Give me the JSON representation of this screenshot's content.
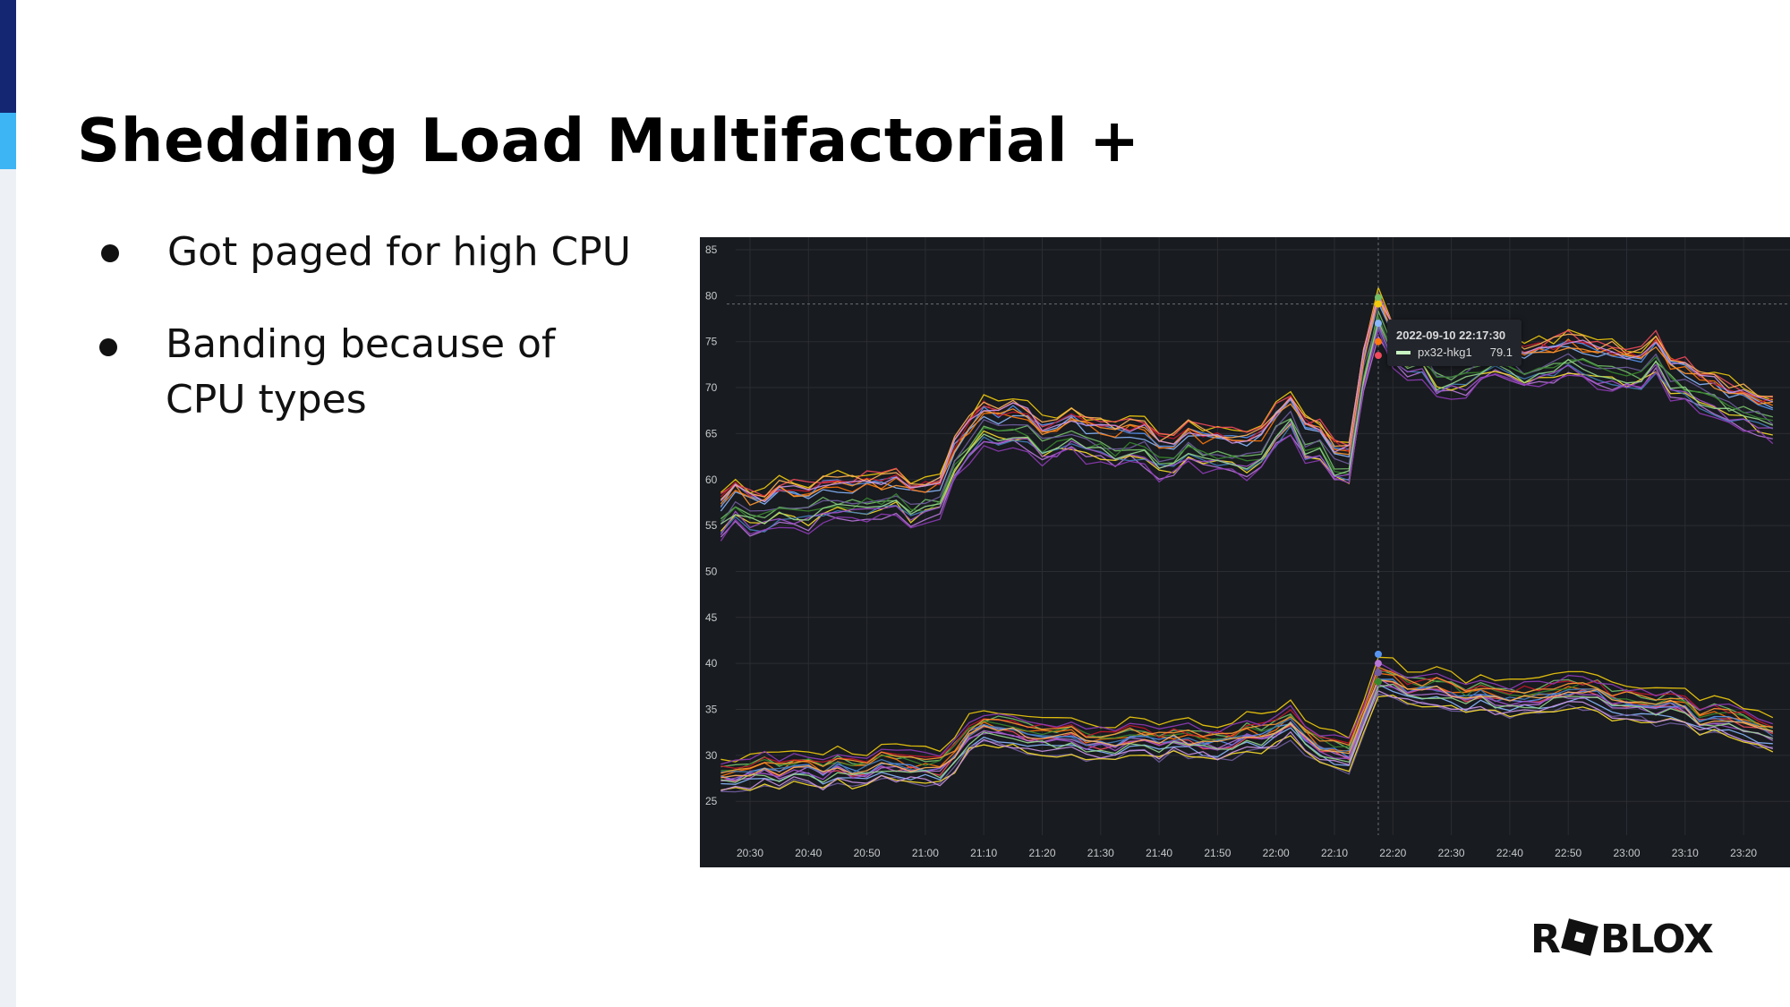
{
  "slide": {
    "title": "Shedding Load Multifactorial +",
    "bullets": [
      "Got paged for high CPU",
      "Banding because of",
      "CPU types"
    ],
    "logo_text": "ROBLOX",
    "accent_colors": {
      "dark_blue": "#142672",
      "light_blue": "#3db5f5",
      "gray": "#edf1f5"
    }
  },
  "chart_data": {
    "type": "line",
    "theme": "dark",
    "background": "#181b1f",
    "grid": true,
    "ylim": [
      22,
      86
    ],
    "y_ticks": [
      "85",
      "80",
      "75",
      "70",
      "65",
      "60",
      "55",
      "50",
      "45",
      "40",
      "35",
      "30",
      "25"
    ],
    "x_ticks": [
      "20:30",
      "20:40",
      "20:50",
      "21:00",
      "21:10",
      "21:20",
      "21:30",
      "21:40",
      "21:50",
      "22:00",
      "22:10",
      "22:20",
      "22:30",
      "22:40",
      "22:50",
      "23:00",
      "23:10",
      "23:20"
    ],
    "bands": [
      {
        "band": "upper",
        "x": [
          "20:25",
          "20:30",
          "20:40",
          "20:50",
          "21:00",
          "21:03",
          "21:05",
          "21:08",
          "21:10",
          "21:20",
          "21:30",
          "21:40",
          "21:50",
          "21:55",
          "22:00",
          "22:02",
          "22:05",
          "22:10",
          "22:13",
          "22:15",
          "22:17",
          "22:20",
          "22:25",
          "22:30",
          "22:40",
          "22:45",
          "22:50",
          "23:00",
          "23:05",
          "23:10",
          "23:20",
          "23:27"
        ],
        "y": [
          57,
          57,
          57.5,
          58,
          58,
          58,
          62,
          66,
          66,
          65,
          64,
          63,
          64,
          63,
          65,
          68,
          64,
          63,
          62,
          72,
          79,
          75,
          73,
          72,
          73,
          73,
          74,
          72,
          73,
          70,
          68,
          65
        ]
      },
      {
        "band": "lower",
        "x": [
          "20:25",
          "20:30",
          "20:50",
          "21:00",
          "21:03",
          "21:08",
          "21:10",
          "21:20",
          "21:30",
          "21:40",
          "21:50",
          "22:00",
          "22:02",
          "22:05",
          "22:10",
          "22:13",
          "22:17",
          "22:20",
          "22:30",
          "22:40",
          "22:50",
          "23:00",
          "23:10",
          "23:20",
          "23:27"
        ],
        "y": [
          28.5,
          28.5,
          29,
          29.5,
          29,
          33,
          33,
          32.5,
          32,
          32,
          32,
          32.5,
          34,
          32,
          31,
          30.5,
          39,
          38,
          37,
          36.5,
          37,
          36.5,
          35,
          33,
          32
        ]
      }
    ],
    "series_colors": [
      "#73bf69",
      "#f2cc0c",
      "#8ab8ff",
      "#ff780a",
      "#f2495c",
      "#5794f2",
      "#b877d9",
      "#705da0",
      "#37872d",
      "#fade2a",
      "#447ebc",
      "#c4162a",
      "#ff9830",
      "#a352cc",
      "#96d98d",
      "#ffb357",
      "#ca95e5",
      "#8f3bb8"
    ],
    "crosshair": {
      "time": "2022-09-10 22:17:30",
      "x": "22:17:30",
      "y": 79.1
    },
    "tooltip": {
      "time": "2022-09-10 22:17:30",
      "series": "px32-hkg1",
      "value": "79.1",
      "color": "#c8f2c2"
    }
  }
}
